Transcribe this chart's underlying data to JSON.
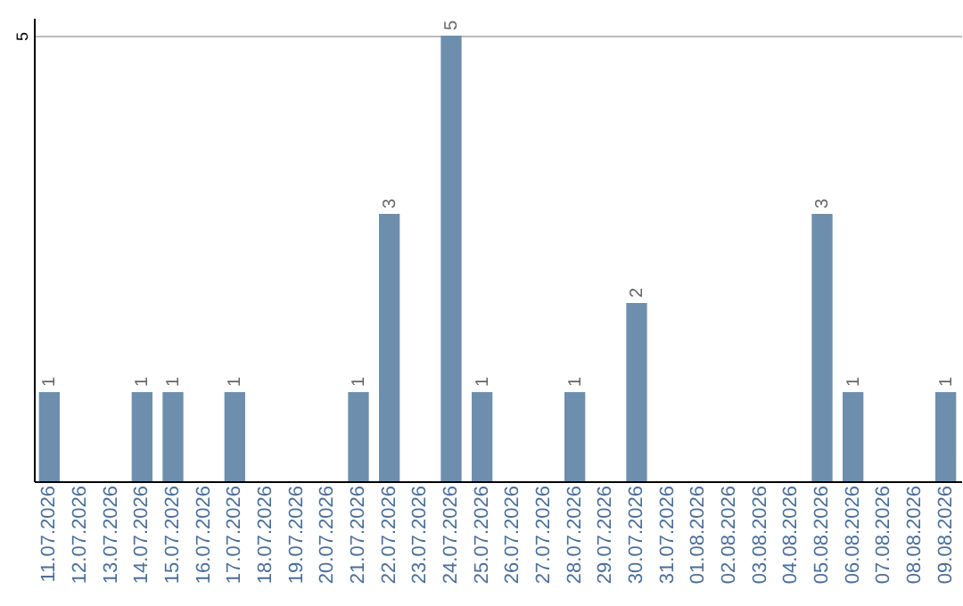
{
  "chart_data": {
    "type": "bar",
    "categories": [
      "11.07.2026",
      "12.07.2026",
      "13.07.2026",
      "14.07.2026",
      "15.07.2026",
      "16.07.2026",
      "17.07.2026",
      "18.07.2026",
      "19.07.2026",
      "20.07.2026",
      "21.07.2026",
      "22.07.2026",
      "23.07.2026",
      "24.07.2026",
      "25.07.2026",
      "26.07.2026",
      "27.07.2026",
      "28.07.2026",
      "29.07.2026",
      "30.07.2026",
      "31.07.2026",
      "01.08.2026",
      "02.08.2026",
      "03.08.2026",
      "04.08.2026",
      "05.08.2026",
      "06.08.2026",
      "07.08.2026",
      "08.08.2026",
      "09.08.2026"
    ],
    "values": [
      1,
      0,
      0,
      1,
      1,
      0,
      1,
      0,
      0,
      0,
      1,
      3,
      0,
      5,
      1,
      0,
      0,
      1,
      0,
      2,
      0,
      0,
      0,
      0,
      0,
      3,
      1,
      0,
      0,
      1
    ],
    "value_labels": [
      "1",
      null,
      null,
      "1",
      "1",
      null,
      "1",
      null,
      null,
      null,
      "1",
      "3",
      null,
      "5",
      "1",
      null,
      null,
      "1",
      null,
      "2",
      null,
      null,
      null,
      null,
      null,
      "3",
      "1",
      null,
      null,
      "1"
    ],
    "color": "#6d8fad",
    "ylim": [
      0,
      5.2
    ],
    "yticks": [
      {
        "value": 0,
        "label": null
      },
      5
    ],
    "grid": "y"
  }
}
